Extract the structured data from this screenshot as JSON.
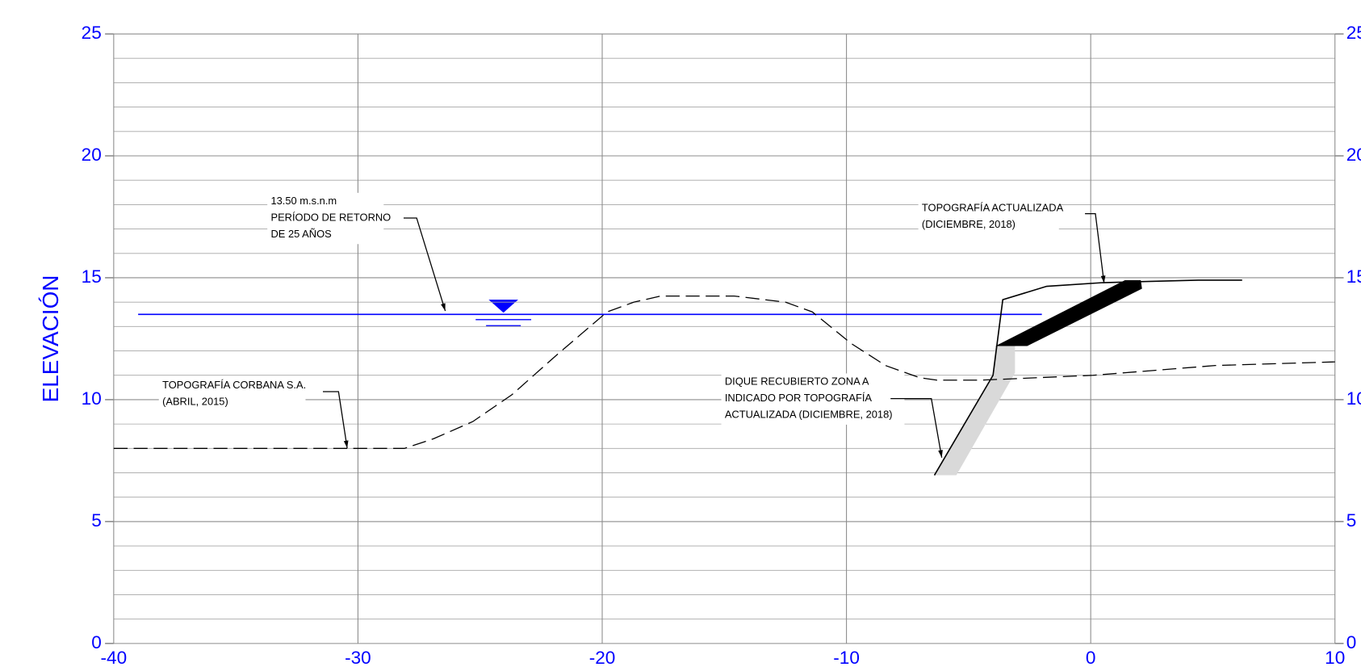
{
  "chart_data": {
    "type": "line",
    "y_label": "ELEVACIÓN",
    "xlim": [
      -40,
      10
    ],
    "ylim": [
      0,
      25
    ],
    "xticks": [
      -40,
      -30,
      -20,
      -10,
      0,
      10
    ],
    "yticks": [
      0,
      5,
      10,
      15,
      20,
      25
    ],
    "yminorticks": [
      1,
      2,
      3,
      4,
      6,
      7,
      8,
      9,
      11,
      12,
      13,
      14,
      16,
      17,
      18,
      19,
      21,
      22,
      23,
      24
    ],
    "grid": true,
    "series": [
      {
        "color": "#0000ff",
        "style": "solid",
        "x": [
          -39,
          -2
        ],
        "values": [
          13.5,
          13.5
        ]
      },
      {
        "color": "#000000",
        "style": "dashed",
        "x": [
          -40,
          -28.1,
          -26.9,
          -25.3,
          -23.7,
          -21.9,
          -19.8,
          -18.7,
          -17.6,
          -14.6,
          -12.5,
          -11.4,
          -9.8,
          -8.4,
          -7.0,
          -6.3,
          -4.5,
          0.1,
          5.1,
          10
        ],
        "values": [
          8.0,
          8.0,
          8.4,
          9.1,
          10.2,
          11.8,
          13.6,
          14.0,
          14.25,
          14.25,
          14.0,
          13.6,
          12.3,
          11.4,
          10.9,
          10.8,
          10.8,
          11.0,
          11.4,
          11.55
        ]
      },
      {
        "color": "#000000",
        "style": "solid",
        "x": [
          -6.4,
          -4.0,
          -3.6,
          -1.8,
          0.5,
          4.4,
          6.2
        ],
        "values": [
          6.9,
          11.0,
          14.1,
          14.65,
          14.8,
          14.9,
          14.9
        ]
      }
    ],
    "shapes": [
      {
        "color": "#d9d9d9",
        "x": [
          -3.9,
          -3.1,
          -3.1,
          -5.5,
          -6.4,
          -4.0
        ],
        "y": [
          12.2,
          12.2,
          11.1,
          6.9,
          6.9,
          11.0
        ]
      },
      {
        "color": "#000000",
        "x": [
          -3.9,
          -2.6,
          2.1,
          2.05,
          1.4
        ],
        "y": [
          12.2,
          12.2,
          14.55,
          14.9,
          14.9
        ]
      }
    ],
    "annotations": [
      {
        "lines": [
          "13.50 m.s.n.m",
          "PERÍODO DE RETORNO",
          "DE 25 AÑOS"
        ]
      },
      {
        "lines": [
          "TOPOGRAFÍA CORBANA S.A.",
          "(ABRIL, 2015)"
        ]
      },
      {
        "lines": [
          "TOPOGRAFÍA ACTUALIZADA",
          "(DICIEMBRE, 2018)"
        ]
      },
      {
        "lines": [
          "DIQUE RECUBIERTO ZONA A",
          "INDICADO POR TOPOGRAFÍA",
          "ACTUALIZADA (DICIEMBRE, 2018)"
        ]
      }
    ]
  }
}
